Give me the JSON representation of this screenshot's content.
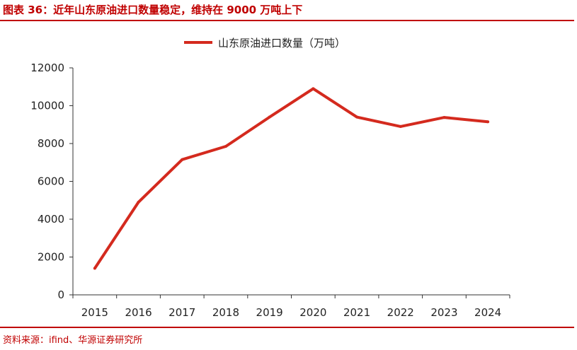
{
  "header": {
    "title": "图表 36：近年山东原油进口数量稳定，维持在 9000 万吨上下"
  },
  "footer": {
    "source": "资料来源：ifind、华源证券研究所"
  },
  "colors": {
    "accent": "#c00000",
    "series": "#d42a1e"
  },
  "chart_data": {
    "type": "line",
    "title": "",
    "xlabel": "",
    "ylabel": "",
    "x": [
      "2015",
      "2016",
      "2017",
      "2018",
      "2019",
      "2020",
      "2021",
      "2022",
      "2023",
      "2024"
    ],
    "series": [
      {
        "name": "山东原油进口数量（万吨）",
        "values": [
          1400,
          4900,
          7150,
          7850,
          9400,
          10900,
          9400,
          8900,
          9380,
          9150
        ]
      }
    ],
    "ylim": [
      0,
      12000
    ],
    "yticks": [
      "0",
      "2000",
      "4000",
      "6000",
      "8000",
      "10000",
      "12000"
    ],
    "grid": false,
    "legend": "top-center"
  }
}
